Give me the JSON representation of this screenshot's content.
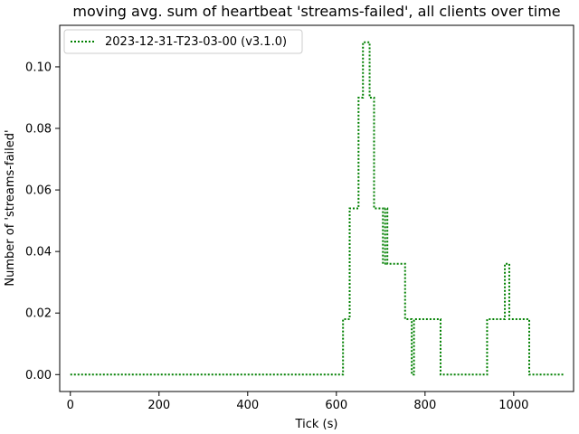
{
  "chart_data": {
    "type": "line",
    "title": "moving avg. sum of heartbeat 'streams-failed', all clients over time",
    "xlabel": "Tick (s)",
    "ylabel": "Number of 'streams-failed'",
    "xlim": [
      -24,
      1135
    ],
    "ylim": [
      -0.0055,
      0.1135
    ],
    "xticks": [
      0,
      200,
      400,
      600,
      800,
      1000
    ],
    "yticks": [
      0.0,
      0.02,
      0.04,
      0.06,
      0.08,
      0.1
    ],
    "ytick_labels": [
      "0.00",
      "0.02",
      "0.04",
      "0.06",
      "0.08",
      "0.10"
    ],
    "grid": false,
    "legend_position": "top-left",
    "series": [
      {
        "name": "2023-12-31-T23-03-00 (v3.1.0)",
        "color": "#008000",
        "line_style": "dotted",
        "step": true,
        "points": [
          [
            0,
            0.0
          ],
          [
            610,
            0.0
          ],
          [
            615,
            0.018
          ],
          [
            625,
            0.018
          ],
          [
            630,
            0.054
          ],
          [
            645,
            0.054
          ],
          [
            650,
            0.09
          ],
          [
            655,
            0.09
          ],
          [
            660,
            0.108
          ],
          [
            670,
            0.108
          ],
          [
            675,
            0.09
          ],
          [
            680,
            0.09
          ],
          [
            685,
            0.054
          ],
          [
            700,
            0.054
          ],
          [
            705,
            0.036
          ],
          [
            710,
            0.054
          ],
          [
            715,
            0.036
          ],
          [
            750,
            0.036
          ],
          [
            755,
            0.018
          ],
          [
            765,
            0.018
          ],
          [
            770,
            0.0
          ],
          [
            775,
            0.018
          ],
          [
            830,
            0.018
          ],
          [
            835,
            0.0
          ],
          [
            935,
            0.0
          ],
          [
            940,
            0.018
          ],
          [
            975,
            0.018
          ],
          [
            980,
            0.036
          ],
          [
            985,
            0.036
          ],
          [
            990,
            0.018
          ],
          [
            1030,
            0.018
          ],
          [
            1035,
            0.0
          ],
          [
            1115,
            0.0
          ]
        ]
      }
    ]
  }
}
